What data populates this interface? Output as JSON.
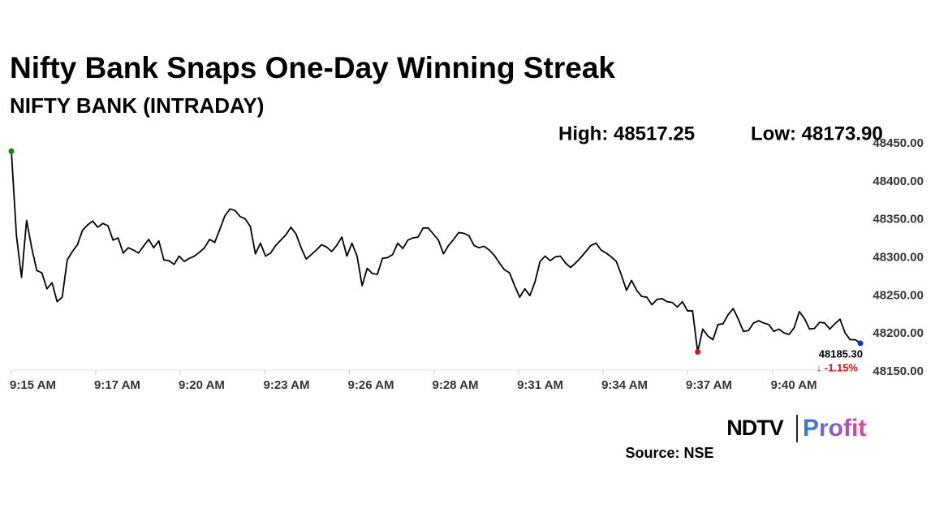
{
  "chart_data": {
    "type": "line",
    "title": "Nifty Bank Snaps One-Day Winning Streak",
    "subtitle": "NIFTY BANK (INTRADAY)",
    "high_label": "High: 48517.25",
    "low_label": "Low: 48173.90",
    "last_value_label": "48185.30",
    "change_label": "↓ -1.15%",
    "source": "Source: NSE",
    "logo": {
      "left": "NDTV",
      "right": "Profit"
    },
    "series": [
      {
        "name": "NIFTY BANK",
        "color": "#000000",
        "values": [
          48438,
          48327,
          48272,
          48347,
          48311,
          48281,
          48278,
          48257,
          48265,
          48240,
          48246,
          48295,
          48306,
          48315,
          48334,
          48341,
          48346,
          48338,
          48343,
          48340,
          48321,
          48324,
          48304,
          48311,
          48308,
          48304,
          48313,
          48322,
          48311,
          48320,
          48295,
          48294,
          48289,
          48300,
          48293,
          48297,
          48300,
          48305,
          48311,
          48322,
          48318,
          48335,
          48353,
          48362,
          48360,
          48352,
          48349,
          48339,
          48303,
          48317,
          48300,
          48304,
          48314,
          48321,
          48328,
          48338,
          48329,
          48311,
          48296,
          48302,
          48308,
          48315,
          48312,
          48306,
          48314,
          48325,
          48300,
          48317,
          48300,
          48261,
          48284,
          48277,
          48276,
          48297,
          48298,
          48302,
          48317,
          48310,
          48321,
          48324,
          48325,
          48337,
          48337,
          48329,
          48321,
          48303,
          48314,
          48322,
          48331,
          48330,
          48327,
          48314,
          48311,
          48313,
          48308,
          48301,
          48291,
          48282,
          48278,
          48261,
          48246,
          48257,
          48248,
          48266,
          48293,
          48300,
          48294,
          48299,
          48300,
          48291,
          48285,
          48291,
          48298,
          48306,
          48314,
          48317,
          48308,
          48304,
          48299,
          48293,
          48275,
          48255,
          48268,
          48255,
          48247,
          48246,
          48236,
          48243,
          48244,
          48240,
          48239,
          48233,
          48240,
          48228,
          48228,
          48174,
          48204,
          48195,
          48190,
          48210,
          48211,
          48223,
          48231,
          48217,
          48201,
          48202,
          48212,
          48215,
          48212,
          48210,
          48201,
          48204,
          48199,
          48197,
          48206,
          48227,
          48218,
          48204,
          48205,
          48213,
          48212,
          48204,
          48211,
          48217,
          48199,
          48190,
          48190,
          48185.3
        ]
      }
    ],
    "start_color": "#0a8a0a",
    "low_color": "#e01010",
    "end_color": "#1a2fc0",
    "change_color": "#e01010",
    "xlim": [
      0,
      167
    ],
    "xticks": [
      {
        "value": 0,
        "label": "9:15 AM"
      },
      {
        "value": 16.6,
        "label": "9:17 AM"
      },
      {
        "value": 33.2,
        "label": "9:20 AM"
      },
      {
        "value": 49.9,
        "label": "9:23 AM"
      },
      {
        "value": 66.5,
        "label": "9:26 AM"
      },
      {
        "value": 83.1,
        "label": "9:28 AM"
      },
      {
        "value": 99.8,
        "label": "9:31 AM"
      },
      {
        "value": 116.4,
        "label": "9:34 AM"
      },
      {
        "value": 133,
        "label": "9:37 AM"
      },
      {
        "value": 149.7,
        "label": "9:40 AM"
      }
    ],
    "ylim": [
      48150,
      48450
    ],
    "yticks": [
      {
        "value": 48150,
        "label": "48150.00"
      },
      {
        "value": 48200,
        "label": "48200.00"
      },
      {
        "value": 48250,
        "label": "48250.00"
      },
      {
        "value": 48300,
        "label": "48300.00"
      },
      {
        "value": 48350,
        "label": "48350.00"
      },
      {
        "value": 48400,
        "label": "48400.00"
      },
      {
        "value": 48450,
        "label": "48450.00"
      }
    ],
    "grid": false
  }
}
